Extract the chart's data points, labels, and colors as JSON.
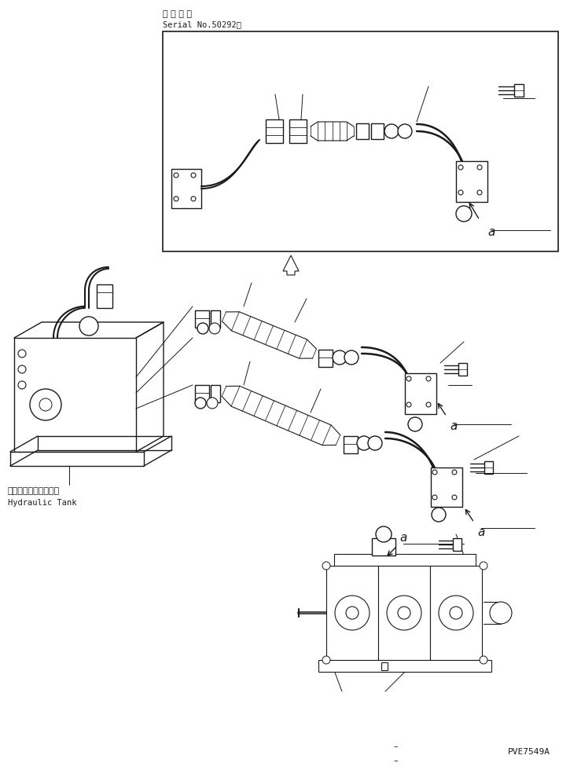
{
  "title_jp": "適 用 号 機",
  "title_serial": "Serial No.50292～",
  "label_a": "a",
  "label_hydraulic_jp": "ハイドロリックタンク",
  "label_hydraulic_en": "Hydraulic Tank",
  "watermark": "PVE7549A",
  "bg_color": "#ffffff",
  "line_color": "#1a1a1a",
  "lw": 0.8
}
